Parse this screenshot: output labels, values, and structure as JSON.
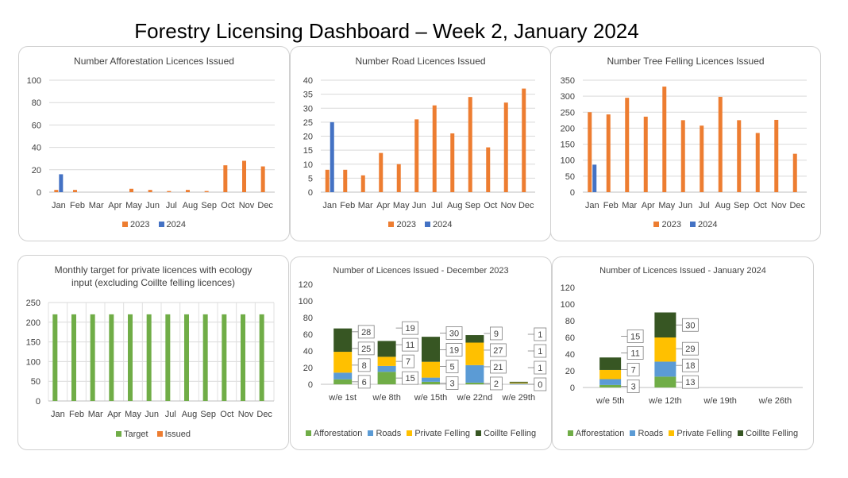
{
  "page_title": "Forestry Licensing Dashboard – Week 2, January 2024",
  "colors": {
    "orange": "#ED7D31",
    "blue": "#4472C4",
    "green": "#70AD47",
    "lightblue": "#5B9BD5",
    "yellow": "#FFC000",
    "darkgreen": "#375623"
  },
  "chart_data": [
    {
      "id": "afforestation",
      "type": "bar",
      "title": "Number Afforestation Licences Issued",
      "categories": [
        "Jan",
        "Feb",
        "Mar",
        "Apr",
        "May",
        "Jun",
        "Jul",
        "Aug",
        "Sep",
        "Oct",
        "Nov",
        "Dec"
      ],
      "series": [
        {
          "name": "2023",
          "color": "#ED7D31",
          "values": [
            2,
            2,
            0,
            0,
            3,
            2,
            1,
            2,
            1,
            24,
            28,
            23
          ]
        },
        {
          "name": "2024",
          "color": "#4472C4",
          "values": [
            16,
            null,
            null,
            null,
            null,
            null,
            null,
            null,
            null,
            null,
            null,
            null
          ]
        }
      ],
      "ylim": [
        0,
        100
      ],
      "yticks": [
        0,
        20,
        40,
        60,
        80,
        100
      ],
      "grid": true,
      "legend": "bottom"
    },
    {
      "id": "roads",
      "type": "bar",
      "title": "Number Road Licences Issued",
      "categories": [
        "Jan",
        "Feb",
        "Mar",
        "Apr",
        "May",
        "Jun",
        "Jul",
        "Aug",
        "Sep",
        "Oct",
        "Nov",
        "Dec"
      ],
      "series": [
        {
          "name": "2023",
          "color": "#ED7D31",
          "values": [
            8,
            8,
            6,
            14,
            10,
            26,
            31,
            21,
            34,
            16,
            32,
            37
          ]
        },
        {
          "name": "2024",
          "color": "#4472C4",
          "values": [
            25,
            null,
            null,
            null,
            null,
            null,
            null,
            null,
            null,
            null,
            null,
            null
          ]
        }
      ],
      "ylim": [
        0,
        40
      ],
      "yticks": [
        0,
        5,
        10,
        15,
        20,
        25,
        30,
        35,
        40
      ],
      "grid": true,
      "legend": "bottom"
    },
    {
      "id": "treefelling",
      "type": "bar",
      "title": "Number Tree Felling Licences Issued",
      "categories": [
        "Jan",
        "Feb",
        "Mar",
        "Apr",
        "May",
        "Jun",
        "Jul",
        "Aug",
        "Sep",
        "Oct",
        "Nov",
        "Dec"
      ],
      "series": [
        {
          "name": "2023",
          "color": "#ED7D31",
          "values": [
            250,
            243,
            295,
            236,
            330,
            225,
            208,
            298,
            225,
            185,
            226,
            120
          ]
        },
        {
          "name": "2024",
          "color": "#4472C4",
          "values": [
            86,
            null,
            null,
            null,
            null,
            null,
            null,
            null,
            null,
            null,
            null,
            null
          ]
        }
      ],
      "ylim": [
        0,
        350
      ],
      "yticks": [
        0,
        50,
        100,
        150,
        200,
        250,
        300,
        350
      ],
      "grid": true,
      "legend": "bottom"
    },
    {
      "id": "ecology",
      "type": "bar",
      "title": "Monthly target for private licences with ecology input (excluding Coillte felling licences)",
      "title_lines": [
        "Monthly target for private licences with ecology",
        "input (excluding Coillte felling licences)"
      ],
      "categories": [
        "Jan",
        "Feb",
        "Mar",
        "Apr",
        "May",
        "Jun",
        "Jul",
        "Aug",
        "Sep",
        "Oct",
        "Nov",
        "Dec"
      ],
      "series": [
        {
          "name": "Target",
          "color": "#70AD47",
          "values": [
            220,
            220,
            220,
            220,
            220,
            220,
            220,
            220,
            220,
            220,
            220,
            220
          ]
        },
        {
          "name": "Issued",
          "color": "#ED7D31",
          "values": [
            null,
            null,
            null,
            null,
            null,
            null,
            null,
            null,
            null,
            null,
            null,
            null
          ]
        }
      ],
      "ylim": [
        0,
        250
      ],
      "yticks": [
        0,
        50,
        100,
        150,
        200,
        250
      ],
      "grid": true,
      "legend": "bottom"
    },
    {
      "id": "dec2023",
      "type": "stacked-bar",
      "title": "Number of Licences Issued - December 2023",
      "categories": [
        "w/e 1st",
        "w/e 8th",
        "w/e 15th",
        "w/e 22nd",
        "w/e 29th"
      ],
      "series": [
        {
          "name": "Afforestation",
          "color": "#70AD47",
          "values": [
            6,
            15,
            3,
            2,
            0
          ]
        },
        {
          "name": "Roads",
          "color": "#5B9BD5",
          "values": [
            8,
            7,
            5,
            21,
            1
          ]
        },
        {
          "name": "Private Felling",
          "color": "#FFC000",
          "values": [
            25,
            11,
            19,
            27,
            1
          ]
        },
        {
          "name": "Coillte Felling",
          "color": "#375623",
          "values": [
            28,
            19,
            30,
            9,
            1
          ]
        }
      ],
      "ylim": [
        0,
        120
      ],
      "yticks": [
        0,
        20,
        40,
        60,
        80,
        100,
        120
      ],
      "grid": false,
      "legend": "bottom"
    },
    {
      "id": "jan2024",
      "type": "stacked-bar",
      "title": "Number of Licences Issued - January 2024",
      "categories": [
        "w/e 5th",
        "w/e 12th",
        "w/e 19th",
        "w/e 26th"
      ],
      "series": [
        {
          "name": "Afforestation",
          "color": "#70AD47",
          "values": [
            3,
            13,
            null,
            null
          ]
        },
        {
          "name": "Roads",
          "color": "#5B9BD5",
          "values": [
            7,
            18,
            null,
            null
          ]
        },
        {
          "name": "Private Felling",
          "color": "#FFC000",
          "values": [
            11,
            29,
            null,
            null
          ]
        },
        {
          "name": "Coillte Felling",
          "color": "#375623",
          "values": [
            15,
            30,
            null,
            null
          ]
        }
      ],
      "ylim": [
        0,
        120
      ],
      "yticks": [
        0,
        20,
        40,
        60,
        80,
        100,
        120
      ],
      "grid": false,
      "legend": "bottom"
    }
  ]
}
